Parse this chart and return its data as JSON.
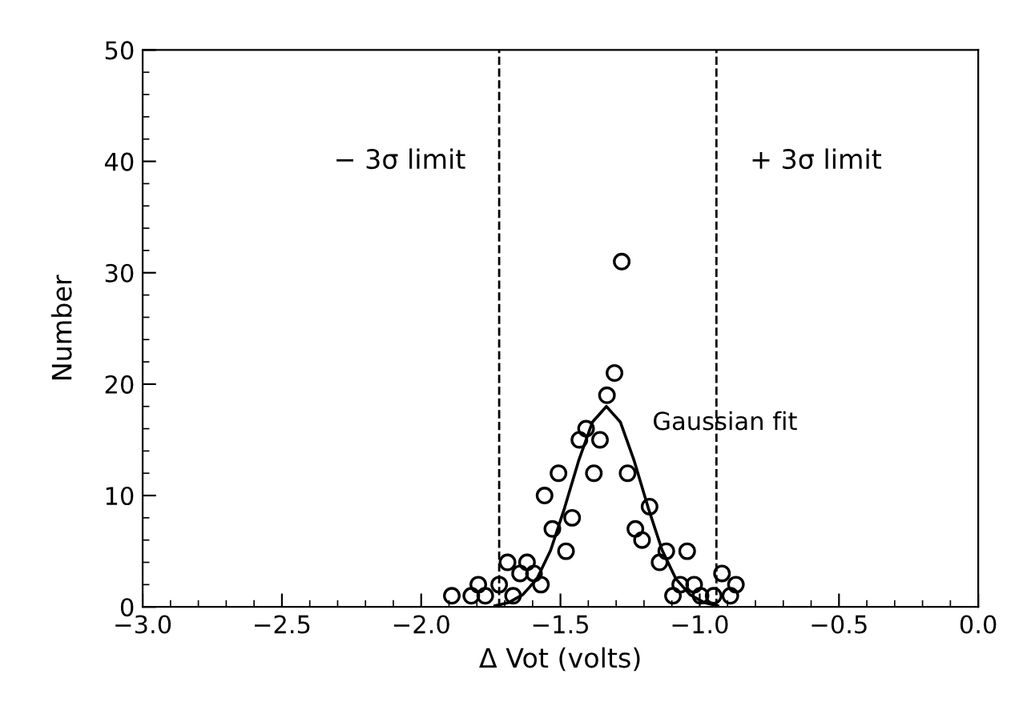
{
  "chart_data": {
    "type": "scatter",
    "xlabel": "Δ Vot (volts)",
    "ylabel": "Number",
    "xlim": [
      -3.0,
      0.0
    ],
    "ylim": [
      0,
      50
    ],
    "xticks": [
      {
        "value": -3.0,
        "label": "−3.0"
      },
      {
        "value": -2.5,
        "label": "−2.5"
      },
      {
        "value": -2.0,
        "label": "−2.0"
      },
      {
        "value": -1.5,
        "label": "−1.5"
      },
      {
        "value": -1.0,
        "label": "−1.0"
      },
      {
        "value": -0.5,
        "label": "−0.5"
      },
      {
        "value": 0.0,
        "label": "0.0"
      }
    ],
    "yticks": [
      0,
      10,
      20,
      30,
      40,
      50
    ],
    "grid": false,
    "legend": false,
    "series": [
      {
        "color": "#000000",
        "marker": "circle",
        "x": [
          -1.89,
          -1.82,
          -1.795,
          -1.77,
          -1.72,
          -1.69,
          -1.67,
          -1.645,
          -1.62,
          -1.595,
          -1.57,
          -1.557,
          -1.529,
          -1.507,
          -1.48,
          -1.458,
          -1.432,
          -1.408,
          -1.38,
          -1.358,
          -1.333,
          -1.306,
          -1.28,
          -1.259,
          -1.231,
          -1.207,
          -1.18,
          -1.144,
          -1.12,
          -1.096,
          -1.07,
          -1.045,
          -1.02,
          -0.997,
          -0.95,
          -0.92,
          -0.89,
          -0.87
        ],
        "values": [
          1,
          1,
          2,
          1,
          2,
          4,
          1,
          3,
          4,
          3,
          2,
          10,
          7,
          12,
          5,
          8,
          15,
          16,
          12,
          15,
          19,
          21,
          31,
          12,
          7,
          6,
          9,
          4,
          5,
          1,
          2,
          5,
          2,
          1,
          1,
          3,
          1,
          2
        ]
      },
      {
        "type": "line",
        "color": "#000000",
        "marker": "none",
        "line_style": "solid",
        "x": [
          -1.735,
          -1.685,
          -1.635,
          -1.585,
          -1.535,
          -1.485,
          -1.435,
          -1.385,
          -1.335,
          -1.285,
          -1.235,
          -1.185,
          -1.135,
          -1.085,
          -1.035,
          -0.985,
          -0.935
        ],
        "values": [
          0.1,
          0.4,
          1.1,
          2.5,
          5.1,
          8.9,
          13.1,
          16.6,
          18,
          16.6,
          13.1,
          8.9,
          5.1,
          2.5,
          1.1,
          0.4,
          0.1
        ]
      }
    ],
    "ref_lines": [
      {
        "axis": "x",
        "value": -1.72,
        "label": "− 3σ limit",
        "line_style": "dashed",
        "color": "#000000"
      },
      {
        "axis": "x",
        "value": -0.94,
        "label": "+ 3σ limit",
        "line_style": "dashed",
        "color": "#000000"
      }
    ],
    "annotations": [
      "Gaussian fit"
    ]
  }
}
